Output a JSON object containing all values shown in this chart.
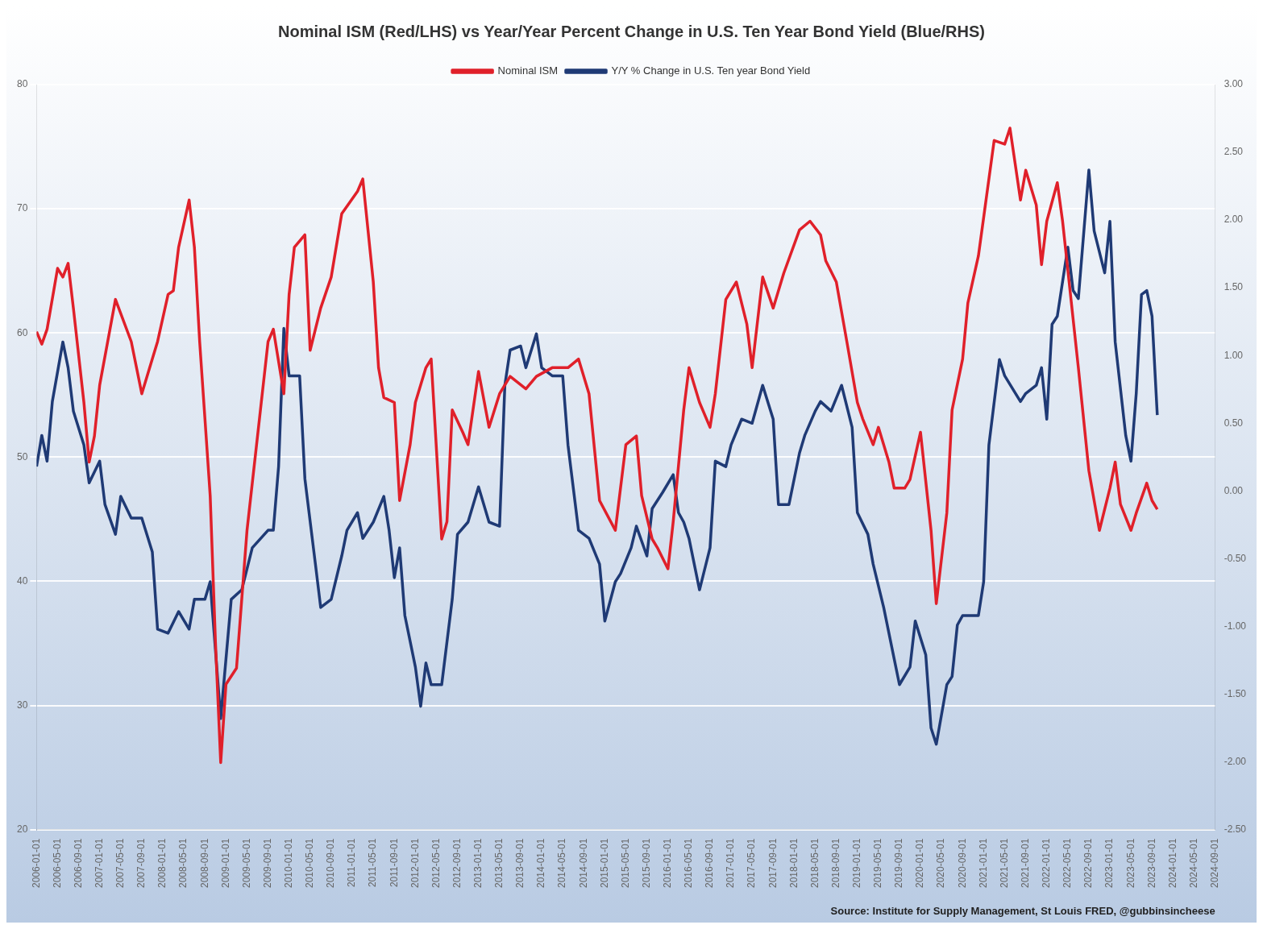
{
  "chart_data": {
    "type": "line",
    "title": "Nominal ISM (Red/LHS) vs Year/Year Percent Change in U.S. Ten Year Bond Yield (Blue/RHS)",
    "annotations": [
      "Source: Institute for Supply Management, St Louis FRED, @gubbinsincheese"
    ],
    "legend": "top",
    "grid": "y",
    "marker": "none",
    "line_style": "solid",
    "xlim": [
      "2006-01",
      "2024-09"
    ],
    "xticks": [
      {
        "value": "2006-01",
        "label": "2006-01-01"
      },
      {
        "value": "2006-05",
        "label": "2006-05-01"
      },
      {
        "value": "2006-09",
        "label": "2006-09-01"
      },
      {
        "value": "2007-01",
        "label": "2007-01-01"
      },
      {
        "value": "2007-05",
        "label": "2007-05-01"
      },
      {
        "value": "2007-09",
        "label": "2007-09-01"
      },
      {
        "value": "2008-01",
        "label": "2008-01-01"
      },
      {
        "value": "2008-05",
        "label": "2008-05-01"
      },
      {
        "value": "2008-09",
        "label": "2008-09-01"
      },
      {
        "value": "2009-01",
        "label": "2009-01-01"
      },
      {
        "value": "2009-05",
        "label": "2009-05-01"
      },
      {
        "value": "2009-09",
        "label": "2009-09-01"
      },
      {
        "value": "2010-01",
        "label": "2010-01-01"
      },
      {
        "value": "2010-05",
        "label": "2010-05-01"
      },
      {
        "value": "2010-09",
        "label": "2010-09-01"
      },
      {
        "value": "2011-01",
        "label": "2011-01-01"
      },
      {
        "value": "2011-05",
        "label": "2011-05-01"
      },
      {
        "value": "2011-09",
        "label": "2011-09-01"
      },
      {
        "value": "2012-01",
        "label": "2012-01-01"
      },
      {
        "value": "2012-05",
        "label": "2012-05-01"
      },
      {
        "value": "2012-09",
        "label": "2012-09-01"
      },
      {
        "value": "2013-01",
        "label": "2013-01-01"
      },
      {
        "value": "2013-05",
        "label": "2013-05-01"
      },
      {
        "value": "2013-09",
        "label": "2013-09-01"
      },
      {
        "value": "2014-01",
        "label": "2014-01-01"
      },
      {
        "value": "2014-05",
        "label": "2014-05-01"
      },
      {
        "value": "2014-09",
        "label": "2014-09-01"
      },
      {
        "value": "2015-01",
        "label": "2015-01-01"
      },
      {
        "value": "2015-05",
        "label": "2015-05-01"
      },
      {
        "value": "2015-09",
        "label": "2015-09-01"
      },
      {
        "value": "2016-01",
        "label": "2016-01-01"
      },
      {
        "value": "2016-05",
        "label": "2016-05-01"
      },
      {
        "value": "2016-09",
        "label": "2016-09-01"
      },
      {
        "value": "2017-01",
        "label": "2017-01-01"
      },
      {
        "value": "2017-05",
        "label": "2017-05-01"
      },
      {
        "value": "2017-09",
        "label": "2017-09-01"
      },
      {
        "value": "2018-01",
        "label": "2018-01-01"
      },
      {
        "value": "2018-05",
        "label": "2018-05-01"
      },
      {
        "value": "2018-09",
        "label": "2018-09-01"
      },
      {
        "value": "2019-01",
        "label": "2019-01-01"
      },
      {
        "value": "2019-05",
        "label": "2019-05-01"
      },
      {
        "value": "2019-09",
        "label": "2019-09-01"
      },
      {
        "value": "2020-01",
        "label": "2020-01-01"
      },
      {
        "value": "2020-05",
        "label": "2020-05-01"
      },
      {
        "value": "2020-09",
        "label": "2020-09-01"
      },
      {
        "value": "2021-01",
        "label": "2021-01-01"
      },
      {
        "value": "2021-05",
        "label": "2021-05-01"
      },
      {
        "value": "2021-09",
        "label": "2021-09-01"
      },
      {
        "value": "2022-01",
        "label": "2022-01-01"
      },
      {
        "value": "2022-05",
        "label": "2022-05-01"
      },
      {
        "value": "2022-09",
        "label": "2022-09-01"
      },
      {
        "value": "2023-01",
        "label": "2023-01-01"
      },
      {
        "value": "2023-05",
        "label": "2023-05-01"
      },
      {
        "value": "2023-09",
        "label": "2023-09-01"
      },
      {
        "value": "2024-01",
        "label": "2024-01-01"
      },
      {
        "value": "2024-05",
        "label": "2024-05-01"
      },
      {
        "value": "2024-09",
        "label": "2024-09-01"
      }
    ],
    "ylim": [
      20,
      80
    ],
    "yticks": [
      20,
      30,
      40,
      50,
      60,
      70,
      80
    ],
    "y2lim": [
      -2.5,
      3
    ],
    "y2ticks": [
      {
        "value": -2.5,
        "label": "-2.50"
      },
      {
        "value": -2,
        "label": "-2.00"
      },
      {
        "value": -1.5,
        "label": "-1.50"
      },
      {
        "value": -1,
        "label": "-1.00"
      },
      {
        "value": -0.5,
        "label": "-0.50"
      },
      {
        "value": 0,
        "label": "0.00"
      },
      {
        "value": 0.5,
        "label": "0.50"
      },
      {
        "value": 1,
        "label": "1.00"
      },
      {
        "value": 1.5,
        "label": "1.50"
      },
      {
        "value": 2,
        "label": "2.00"
      },
      {
        "value": 2.5,
        "label": "2.50"
      },
      {
        "value": 3,
        "label": "3.00"
      }
    ],
    "series": [
      {
        "name": "Nominal ISM",
        "color": "#e0202a",
        "x": [
          "2006-01",
          "2006-02",
          "2006-03",
          "2006-05",
          "2006-06",
          "2006-07",
          "2006-08",
          "2006-10",
          "2006-11",
          "2006-12",
          "2007-01",
          "2007-04",
          "2007-07",
          "2007-09",
          "2007-11",
          "2007-12",
          "2008-02",
          "2008-03",
          "2008-04",
          "2008-06",
          "2008-07",
          "2008-08",
          "2008-10",
          "2008-11",
          "2008-12",
          "2009-01",
          "2009-03",
          "2009-05",
          "2009-09",
          "2009-10",
          "2009-12",
          "2010-01",
          "2010-02",
          "2010-04",
          "2010-05",
          "2010-07",
          "2010-09",
          "2010-11",
          "2011-02",
          "2011-03",
          "2011-05",
          "2011-06",
          "2011-07",
          "2011-09",
          "2011-10",
          "2011-12",
          "2012-01",
          "2012-03",
          "2012-04",
          "2012-06",
          "2012-07",
          "2012-08",
          "2012-10",
          "2012-11",
          "2013-01",
          "2013-03",
          "2013-05",
          "2013-07",
          "2013-10",
          "2013-12",
          "2014-03",
          "2014-06",
          "2014-08",
          "2014-10",
          "2014-12",
          "2015-03",
          "2015-05",
          "2015-07",
          "2015-08",
          "2015-10",
          "2015-11",
          "2016-01",
          "2016-02",
          "2016-04",
          "2016-05",
          "2016-07",
          "2016-09",
          "2016-10",
          "2016-12",
          "2017-02",
          "2017-04",
          "2017-05",
          "2017-07",
          "2017-09",
          "2017-11",
          "2018-02",
          "2018-04",
          "2018-06",
          "2018-07",
          "2018-09",
          "2018-11",
          "2019-01",
          "2019-02",
          "2019-04",
          "2019-05",
          "2019-07",
          "2019-08",
          "2019-10",
          "2019-11",
          "2020-01",
          "2020-03",
          "2020-04",
          "2020-06",
          "2020-07",
          "2020-09",
          "2020-10",
          "2020-12",
          "2021-01",
          "2021-03",
          "2021-05",
          "2021-06",
          "2021-08",
          "2021-09",
          "2021-11",
          "2021-12",
          "2022-01",
          "2022-03",
          "2022-04",
          "2022-07",
          "2022-09",
          "2022-11",
          "2023-01",
          "2023-02",
          "2023-03",
          "2023-05",
          "2023-06",
          "2023-08",
          "2023-09",
          "2023-10"
        ],
        "values": [
          60.1,
          59.1,
          60.3,
          65.2,
          64.5,
          65.6,
          62.0,
          54.4,
          49.6,
          51.7,
          55.8,
          62.7,
          59.3,
          55.1,
          57.9,
          59.3,
          63.1,
          63.4,
          66.9,
          70.7,
          66.9,
          59.3,
          46.9,
          35.1,
          25.4,
          31.7,
          33.0,
          44.1,
          59.3,
          60.3,
          55.1,
          63.1,
          66.9,
          67.9,
          58.6,
          62.0,
          64.5,
          69.6,
          71.4,
          72.4,
          64.1,
          57.2,
          54.8,
          54.4,
          46.5,
          51.0,
          54.4,
          57.2,
          57.9,
          43.4,
          44.8,
          53.8,
          52.0,
          51.0,
          56.9,
          52.4,
          55.1,
          56.5,
          55.5,
          56.5,
          57.2,
          57.2,
          57.9,
          55.1,
          46.5,
          44.1,
          51.0,
          51.7,
          46.9,
          43.4,
          42.7,
          41.0,
          44.8,
          53.8,
          57.2,
          54.4,
          52.4,
          55.1,
          62.7,
          64.1,
          60.7,
          57.2,
          64.5,
          62.0,
          64.8,
          68.3,
          69.0,
          67.9,
          65.8,
          64.1,
          59.3,
          54.4,
          53.1,
          51.0,
          52.4,
          49.6,
          47.5,
          47.5,
          48.2,
          52.0,
          44.1,
          38.2,
          45.5,
          53.8,
          57.9,
          62.4,
          66.2,
          69.3,
          75.5,
          75.2,
          76.5,
          70.7,
          73.1,
          70.3,
          65.5,
          69.0,
          72.1,
          69.0,
          57.2,
          48.9,
          44.1,
          47.5,
          49.6,
          46.2,
          44.1,
          45.5,
          47.9,
          46.5,
          45.8
        ]
      },
      {
        "name": "Y/Y % Change in U.S. Ten year Bond Yield",
        "color": "#1f3a75",
        "axis": "y2",
        "x": [
          "2006-01",
          "2006-02",
          "2006-03",
          "2006-04",
          "2006-06",
          "2006-07",
          "2006-08",
          "2006-10",
          "2006-11",
          "2007-01",
          "2007-02",
          "2007-04",
          "2007-05",
          "2007-07",
          "2007-09",
          "2007-11",
          "2007-12",
          "2008-02",
          "2008-04",
          "2008-06",
          "2008-07",
          "2008-09",
          "2008-10",
          "2008-12",
          "2009-01",
          "2009-02",
          "2009-04",
          "2009-06",
          "2009-09",
          "2009-10",
          "2009-11",
          "2009-12",
          "2010-01",
          "2010-03",
          "2010-04",
          "2010-06",
          "2010-07",
          "2010-09",
          "2010-11",
          "2010-12",
          "2011-02",
          "2011-03",
          "2011-05",
          "2011-07",
          "2011-08",
          "2011-09",
          "2011-10",
          "2011-11",
          "2012-01",
          "2012-02",
          "2012-03",
          "2012-04",
          "2012-06",
          "2012-08",
          "2012-09",
          "2012-11",
          "2013-01",
          "2013-03",
          "2013-05",
          "2013-06",
          "2013-07",
          "2013-09",
          "2013-10",
          "2013-12",
          "2014-01",
          "2014-03",
          "2014-05",
          "2014-06",
          "2014-08",
          "2014-10",
          "2014-12",
          "2015-01",
          "2015-03",
          "2015-04",
          "2015-06",
          "2015-07",
          "2015-09",
          "2015-10",
          "2015-12",
          "2016-02",
          "2016-03",
          "2016-04",
          "2016-05",
          "2016-07",
          "2016-09",
          "2016-10",
          "2016-12",
          "2017-01",
          "2017-03",
          "2017-05",
          "2017-07",
          "2017-09",
          "2017-10",
          "2017-12",
          "2018-02",
          "2018-03",
          "2018-05",
          "2018-06",
          "2018-08",
          "2018-10",
          "2018-12",
          "2019-01",
          "2019-03",
          "2019-04",
          "2019-06",
          "2019-08",
          "2019-09",
          "2019-11",
          "2019-12",
          "2020-02",
          "2020-03",
          "2020-04",
          "2020-06",
          "2020-07",
          "2020-08",
          "2020-09",
          "2020-12",
          "2021-01",
          "2021-02",
          "2021-04",
          "2021-05",
          "2021-08",
          "2021-09",
          "2021-11",
          "2021-12",
          "2022-01",
          "2022-02",
          "2022-03",
          "2022-05",
          "2022-06",
          "2022-07",
          "2022-09",
          "2022-10",
          "2022-12",
          "2023-01",
          "2023-02",
          "2023-04",
          "2023-05",
          "2023-06",
          "2023-07",
          "2023-08",
          "2023-09",
          "2023-10"
        ],
        "values": [
          0.18,
          0.41,
          0.22,
          0.66,
          1.1,
          0.91,
          0.59,
          0.34,
          0.06,
          0.22,
          -0.1,
          -0.32,
          -0.04,
          -0.2,
          -0.2,
          -0.45,
          -1.02,
          -1.05,
          -0.89,
          -1.02,
          -0.8,
          -0.8,
          -0.67,
          -1.68,
          -1.24,
          -0.8,
          -0.73,
          -0.42,
          -0.29,
          -0.29,
          0.18,
          1.2,
          0.85,
          0.85,
          0.09,
          -0.54,
          -0.86,
          -0.8,
          -0.48,
          -0.29,
          -0.16,
          -0.35,
          -0.23,
          -0.04,
          -0.29,
          -0.64,
          -0.42,
          -0.92,
          -1.3,
          -1.59,
          -1.27,
          -1.43,
          -1.43,
          -0.8,
          -0.32,
          -0.23,
          0.03,
          -0.23,
          -0.26,
          0.78,
          1.04,
          1.07,
          0.91,
          1.16,
          0.91,
          0.85,
          0.85,
          0.34,
          -0.29,
          -0.35,
          -0.54,
          -0.96,
          -0.67,
          -0.61,
          -0.42,
          -0.26,
          -0.48,
          -0.13,
          -0.01,
          0.12,
          -0.16,
          -0.23,
          -0.35,
          -0.73,
          -0.42,
          0.22,
          0.18,
          0.34,
          0.53,
          0.5,
          0.78,
          0.53,
          -0.1,
          -0.1,
          0.28,
          0.41,
          0.59,
          0.66,
          0.59,
          0.78,
          0.47,
          -0.16,
          -0.32,
          -0.54,
          -0.86,
          -1.24,
          -1.43,
          -1.3,
          -0.96,
          -1.21,
          -1.75,
          -1.87,
          -1.43,
          -1.37,
          -0.99,
          -0.92,
          -0.92,
          -0.67,
          0.34,
          0.97,
          0.85,
          0.66,
          0.72,
          0.78,
          0.91,
          0.53,
          1.23,
          1.29,
          1.8,
          1.48,
          1.42,
          2.37,
          1.92,
          1.61,
          1.99,
          1.1,
          0.41,
          0.22,
          0.72,
          1.45,
          1.48,
          1.29,
          0.56
        ]
      }
    ]
  }
}
